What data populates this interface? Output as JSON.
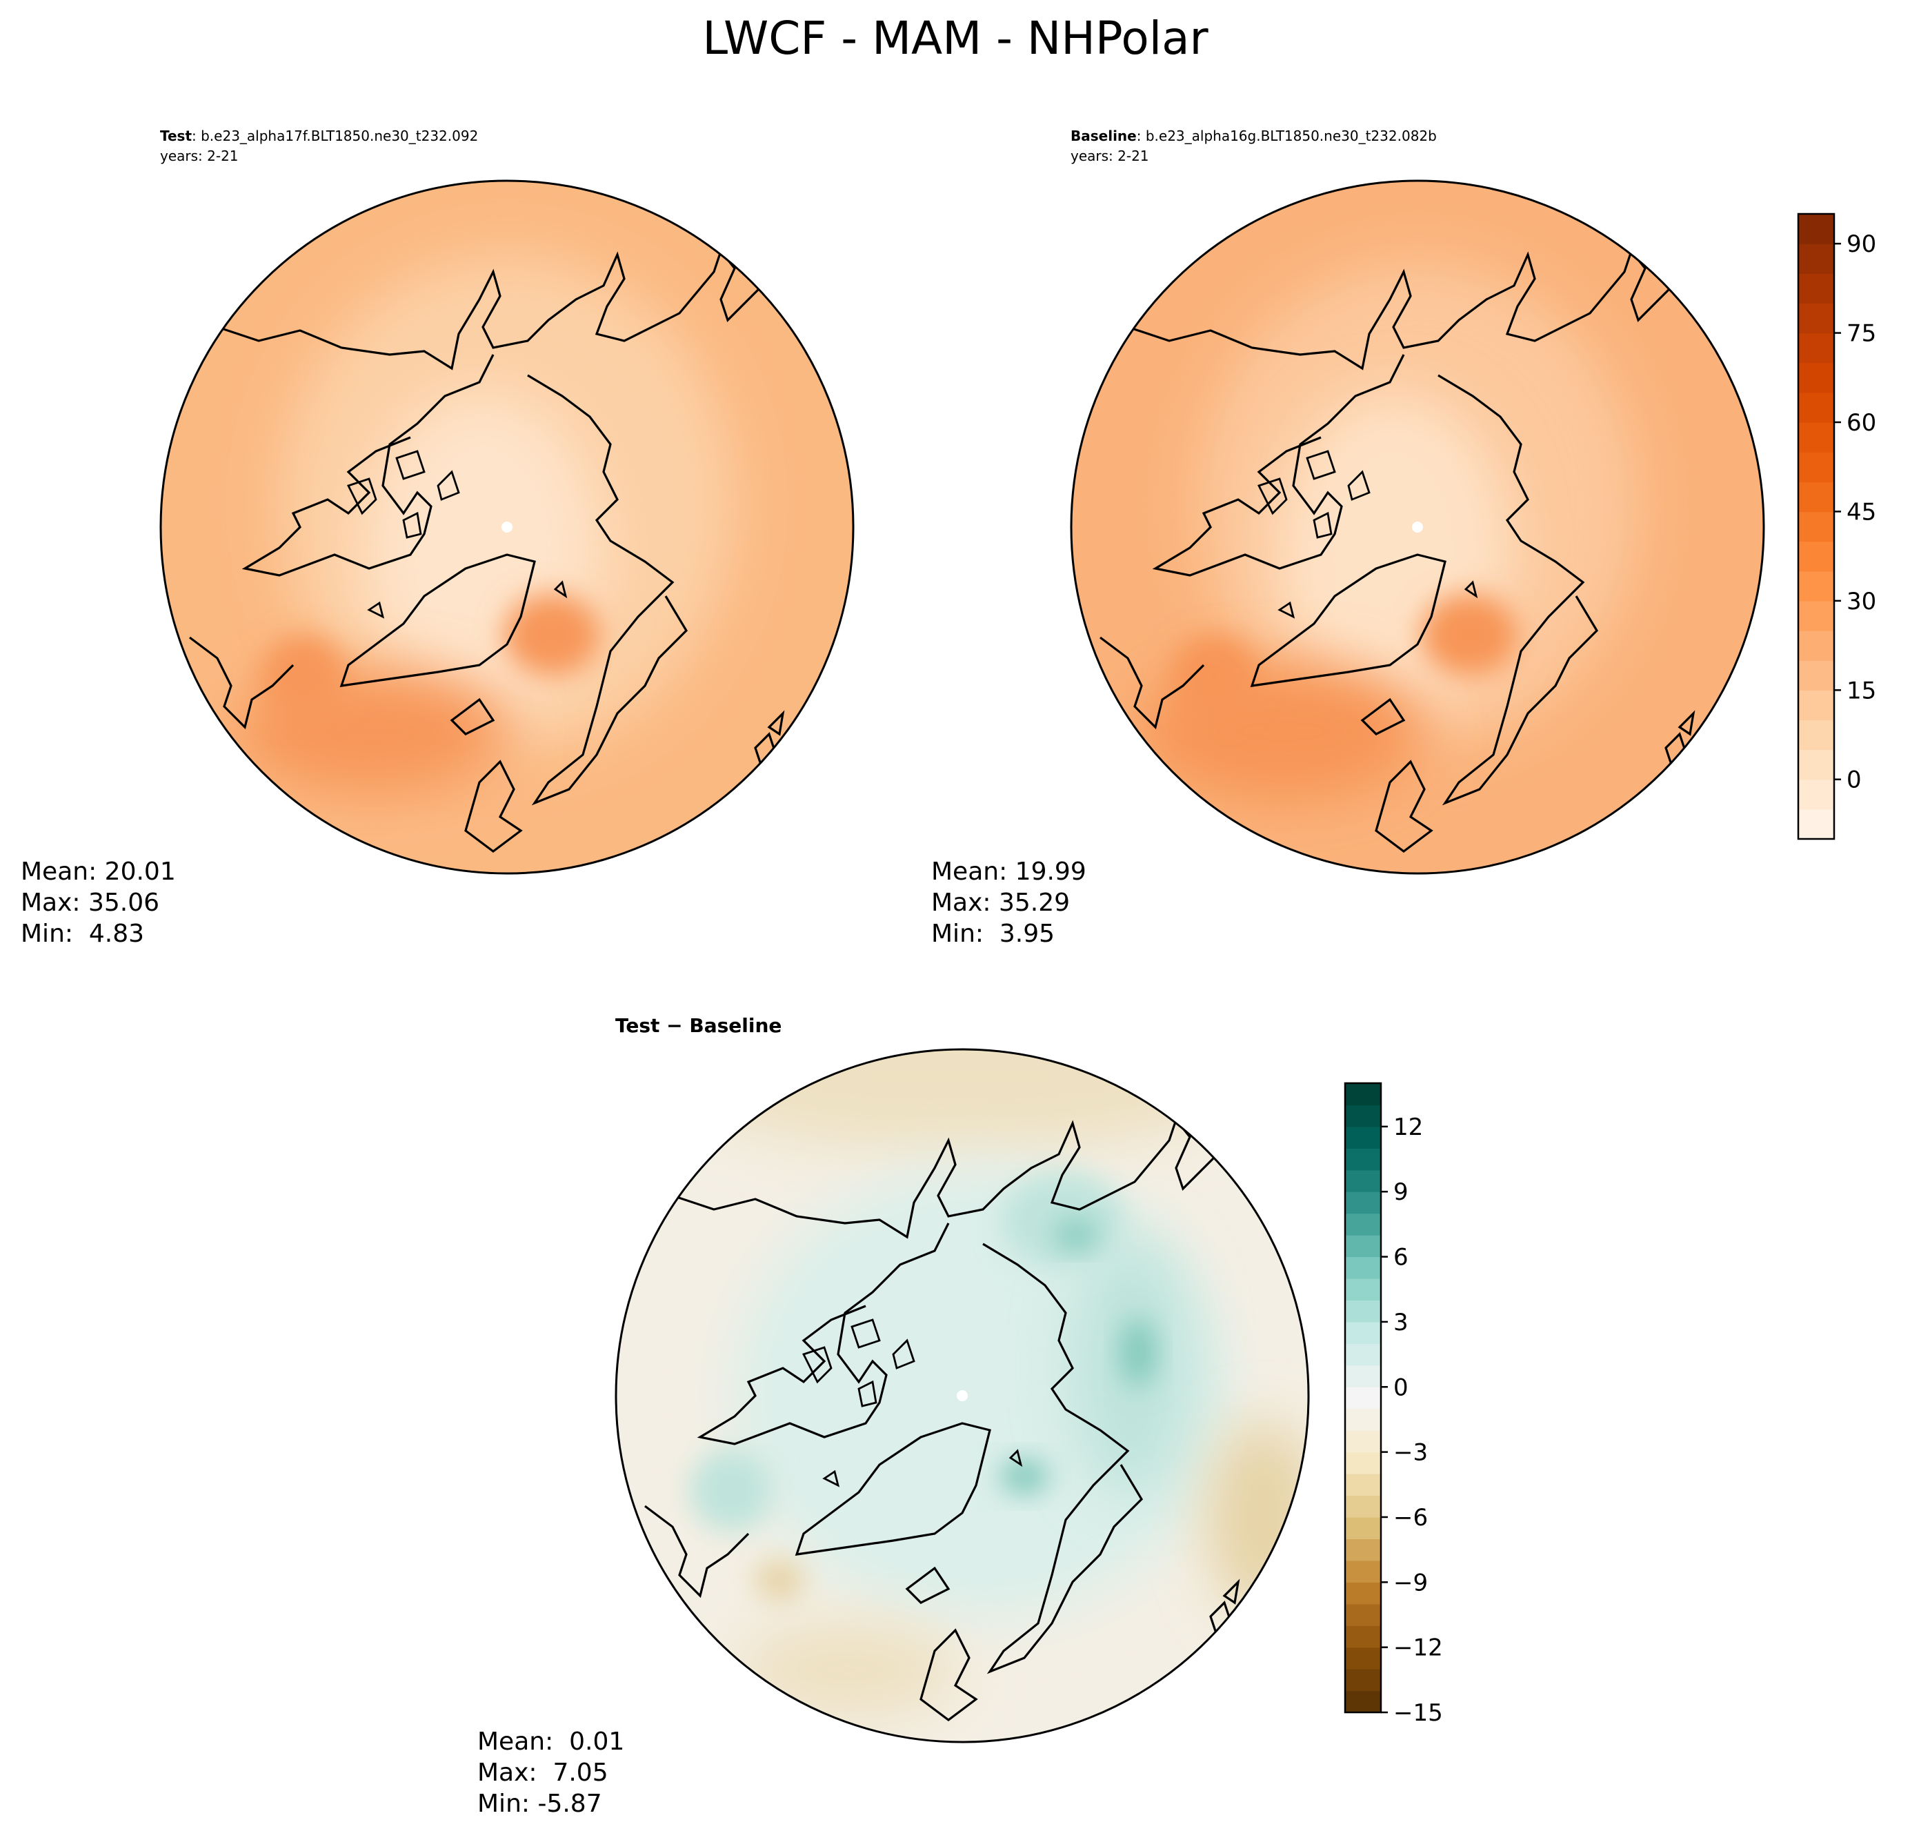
{
  "figure": {
    "title": "LWCF - MAM - NHPolar"
  },
  "panels": {
    "test": {
      "label_bold": "Test",
      "label_rest": ": b.e23_alpha17f.BLT1850.ne30_t232.092",
      "years": "years: 2-21",
      "stats": {
        "mean": "Mean: 20.01",
        "max": "Max: 35.06",
        "min": "Min:  4.83"
      }
    },
    "baseline": {
      "label_bold": "Baseline",
      "label_rest": ": b.e23_alpha16g.BLT1850.ne30_t232.082b",
      "years": "years: 2-21",
      "stats": {
        "mean": "Mean: 19.99",
        "max": "Max: 35.29",
        "min": "Min:  3.95"
      }
    },
    "diff": {
      "label": "Test − Baseline",
      "stats": {
        "mean": "Mean:  0.01",
        "max": "Max:  7.05",
        "min": "Min: -5.87"
      }
    }
  },
  "colorbars": {
    "field": {
      "ticks": [
        "90",
        "75",
        "60",
        "45",
        "30",
        "15",
        "0"
      ],
      "tick_values": [
        90,
        75,
        60,
        45,
        30,
        15,
        0
      ],
      "range": [
        -10,
        95
      ],
      "palette": "Oranges",
      "colors": [
        "#fff5eb",
        "#feddb8",
        "#fdb57d",
        "#fd8d3c",
        "#ef6511",
        "#d84801",
        "#b13802",
        "#7f2704"
      ]
    },
    "diff": {
      "ticks": [
        "12",
        "9",
        "6",
        "3",
        "0",
        "−3",
        "−6",
        "−9",
        "−12",
        "−15"
      ],
      "tick_values": [
        12,
        9,
        6,
        3,
        0,
        -3,
        -6,
        -9,
        -12,
        -15
      ],
      "range": [
        -15,
        14
      ],
      "palette": "BrBG",
      "colors": [
        "#543005",
        "#8c510a",
        "#bf812d",
        "#dfc27d",
        "#f6e8c3",
        "#f5f5f5",
        "#c7eae5",
        "#80cdc1",
        "#35978f",
        "#01665e",
        "#003c30"
      ]
    }
  },
  "map_colors": {
    "coast": "#000000",
    "test_base": "#fbb982",
    "test_mid": "#fcd0a6",
    "test_center": "#fee4ca",
    "test_warm": "#f7975a",
    "baseline_base": "#fab27a",
    "baseline_mid": "#fcc89c",
    "baseline_center": "#fee2c6",
    "baseline_warm": "#f79557",
    "diff_base": "#f4efe4",
    "diff_teal": "#bfe4dc",
    "diff_teal_dark": "#7fc8b9",
    "diff_brown": "#e6d3a6"
  }
}
